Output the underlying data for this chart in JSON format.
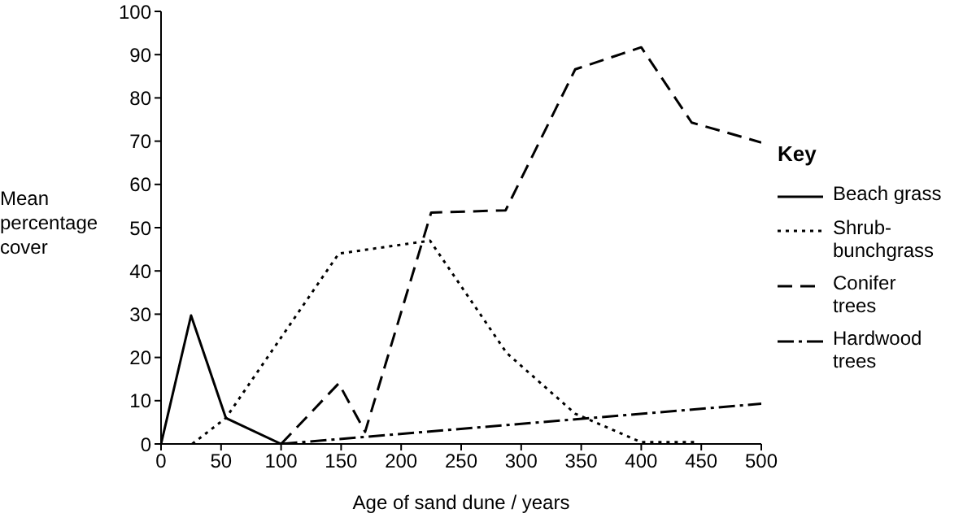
{
  "chart_data": {
    "type": "line",
    "xlabel": "Age of sand dune / years",
    "ylabel": "Mean percentage cover",
    "legend_title": "Key",
    "xlim": [
      0,
      500
    ],
    "xticks": [
      0,
      50,
      100,
      150,
      200,
      250,
      300,
      350,
      400,
      450,
      500
    ],
    "ylim": [
      0,
      100
    ],
    "yticks": [
      0,
      10,
      20,
      30,
      40,
      50,
      60,
      70,
      80,
      90,
      100
    ],
    "grid": false,
    "legend": "right",
    "marker": "none",
    "series": [
      {
        "name": "Beach grass",
        "color": "#000000",
        "line_style": "solid",
        "x": [
          0,
          25,
          54,
          100
        ],
        "values": [
          0,
          29.7,
          6,
          0
        ]
      },
      {
        "name": "Shrub-bunchgrass",
        "color": "#000000",
        "line_style": "dotted",
        "x": [
          26,
          54,
          148,
          224,
          288,
          345,
          400,
          444
        ],
        "values": [
          0,
          6,
          44,
          47,
          21,
          7,
          0.4,
          0.4
        ]
      },
      {
        "name": "Conifer trees",
        "color": "#000000",
        "line_style": "dashed",
        "x": [
          100,
          148,
          170,
          225,
          287,
          345,
          400,
          442,
          500
        ],
        "values": [
          0,
          14,
          2.8,
          53.5,
          54,
          86.6,
          91.7,
          74.3,
          69.7
        ]
      },
      {
        "name": "Hardwood trees",
        "color": "#000000",
        "line_style": "dashdot",
        "x": [
          100,
          500
        ],
        "values": [
          0,
          9.3
        ]
      }
    ]
  }
}
